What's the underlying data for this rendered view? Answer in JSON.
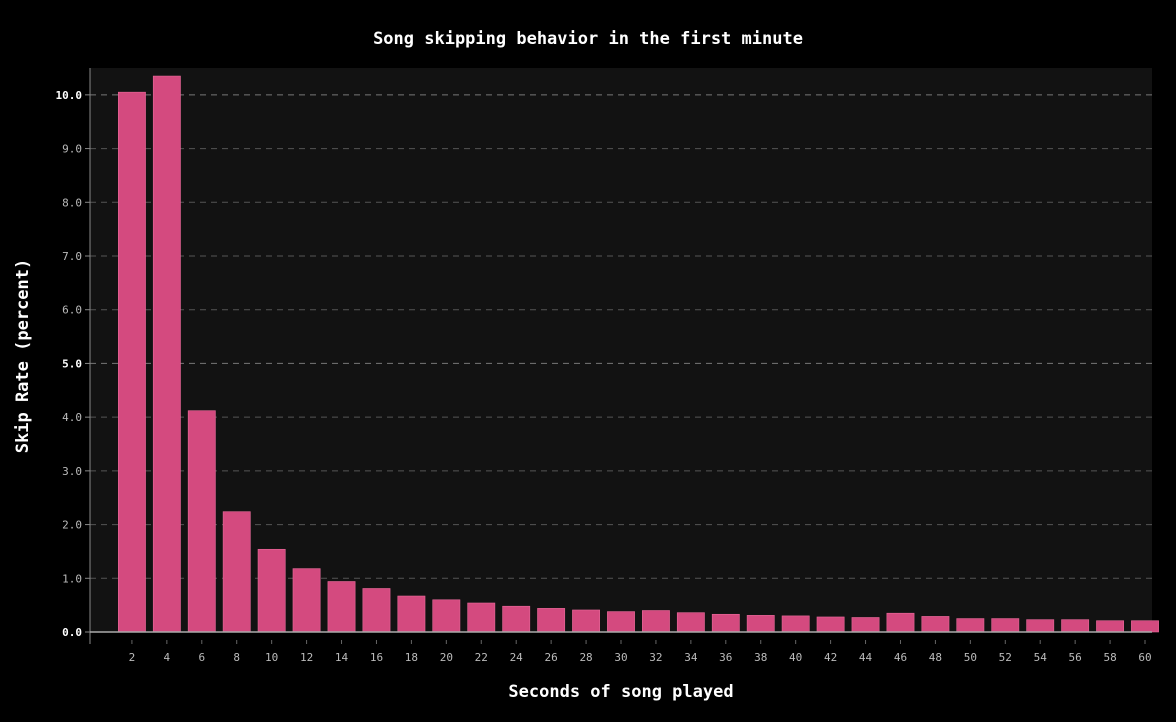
{
  "chart_data": {
    "type": "bar",
    "title": "Song skipping behavior in the first minute",
    "xlabel": "Seconds of song played",
    "ylabel": "Skip Rate (percent)",
    "categories": [
      "2",
      "4",
      "6",
      "8",
      "10",
      "12",
      "14",
      "16",
      "18",
      "20",
      "22",
      "24",
      "26",
      "28",
      "30",
      "32",
      "34",
      "36",
      "38",
      "40",
      "42",
      "44",
      "46",
      "48",
      "50",
      "52",
      "54",
      "56",
      "58",
      "60"
    ],
    "values": [
      10.05,
      10.35,
      4.12,
      2.24,
      1.54,
      1.18,
      0.94,
      0.81,
      0.67,
      0.6,
      0.54,
      0.48,
      0.44,
      0.41,
      0.38,
      0.4,
      0.36,
      0.33,
      0.31,
      0.3,
      0.28,
      0.27,
      0.35,
      0.29,
      0.25,
      0.25,
      0.23,
      0.23,
      0.21,
      0.21
    ],
    "ylim": [
      0,
      10.5
    ],
    "yticks": [
      "0.0",
      "1.0",
      "2.0",
      "3.0",
      "4.0",
      "5.0",
      "6.0",
      "7.0",
      "8.0",
      "9.0",
      "10.0"
    ],
    "bold_yticks": [
      "0.0",
      "5.0",
      "10.0"
    ],
    "grid": true,
    "colors": {
      "bar": "#d44a7f",
      "background": "#121212",
      "page": "#000000"
    }
  }
}
